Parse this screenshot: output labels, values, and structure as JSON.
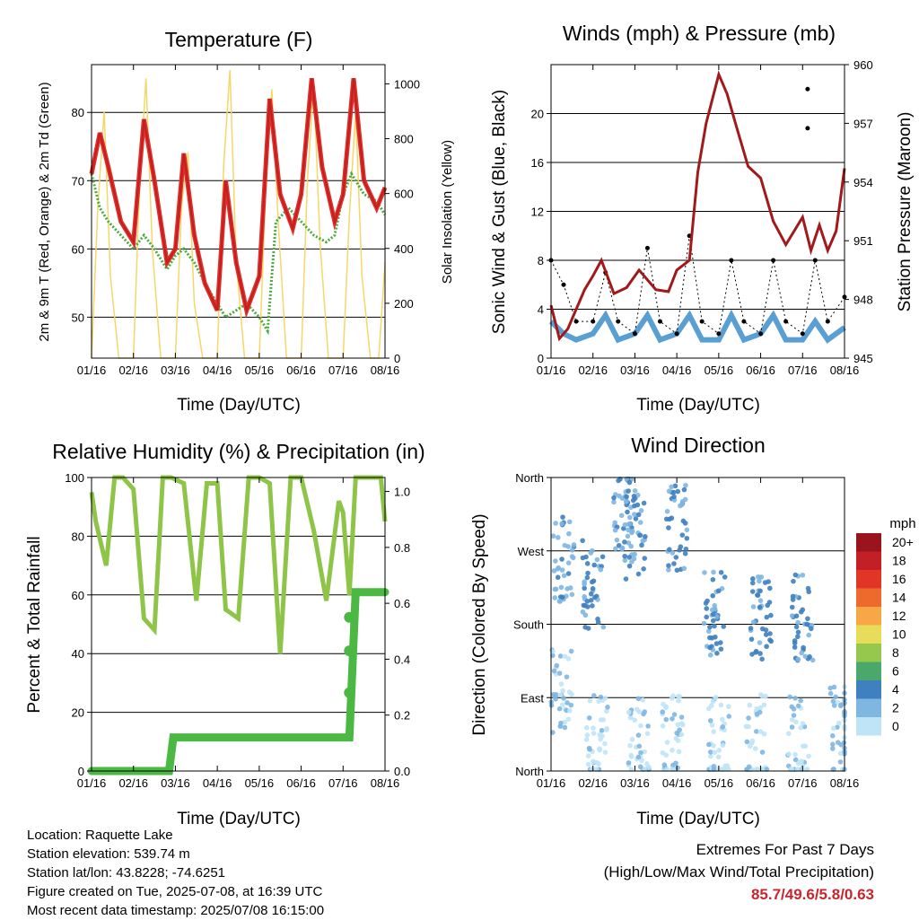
{
  "colors": {
    "temp_2m": "#e0302a",
    "temp_9m": "#c41f1f",
    "dewpoint": "#4aab3a",
    "solar": "#f5d769",
    "wind": "#5a9fd4",
    "gust": "#000000",
    "pressure": "#a0191b",
    "rh": "#8ec549",
    "precip": "#4cb844"
  },
  "chart_data": [
    {
      "id": "temperature",
      "type": "line",
      "title": "Temperature (F)",
      "xlabel": "Time (Day/UTC)",
      "ylabel": "2m & 9m T (Red, Orange) & 2m Td (Green)",
      "y2label": "Solar Insolation (Yellow)",
      "xticks": [
        "01/16",
        "02/16",
        "03/16",
        "04/16",
        "05/16",
        "06/16",
        "07/16",
        "08/16"
      ],
      "xlim": [
        0,
        7
      ],
      "ylim": [
        44,
        87
      ],
      "yticks": [
        50,
        60,
        70,
        80
      ],
      "y2lim": [
        0,
        1070
      ],
      "y2ticks": [
        0,
        200,
        400,
        600,
        800,
        1000
      ],
      "grid": true,
      "series": [
        {
          "key": "temp",
          "x": [
            0,
            0.2,
            0.4,
            0.7,
            1,
            1.25,
            1.5,
            1.8,
            2,
            2.2,
            2.45,
            2.7,
            3,
            3.2,
            3.45,
            3.7,
            4,
            4.25,
            4.5,
            4.8,
            5,
            5.25,
            5.5,
            5.8,
            6,
            6.25,
            6.5,
            6.8,
            7
          ],
          "y": [
            71,
            77,
            72,
            64,
            61,
            79,
            70,
            58,
            60,
            74,
            62,
            55,
            51,
            70,
            58,
            51,
            56,
            82,
            68,
            63,
            68,
            85,
            72,
            64,
            68,
            85,
            70,
            66,
            69
          ]
        },
        {
          "key": "dewpoint",
          "x": [
            0,
            0.2,
            0.4,
            0.7,
            1,
            1.25,
            1.5,
            1.8,
            2,
            2.2,
            2.45,
            2.7,
            3,
            3.2,
            3.45,
            3.7,
            4,
            4.2,
            4.4,
            4.7,
            5,
            5.3,
            5.6,
            5.8,
            6,
            6.2,
            6.5,
            6.8,
            7
          ],
          "y": [
            71,
            66,
            64,
            62,
            60,
            62,
            60,
            57,
            59,
            60,
            58,
            55,
            52,
            50,
            51,
            52,
            50,
            48,
            64,
            66,
            64,
            62,
            61,
            62,
            68,
            71,
            68,
            67,
            65
          ]
        },
        {
          "key": "solar",
          "x": [
            0,
            0.15,
            0.3,
            0.45,
            0.65,
            0.85,
            1,
            1.15,
            1.3,
            1.45,
            1.65,
            1.85,
            2,
            2.15,
            2.3,
            2.45,
            2.65,
            2.85,
            3,
            3.15,
            3.3,
            3.45,
            3.65,
            3.85,
            4,
            4.15,
            4.3,
            4.45,
            4.65,
            4.85,
            5,
            5.15,
            5.3,
            5.45,
            5.65,
            5.85,
            6,
            6.15,
            6.3,
            6.45,
            6.65,
            6.85,
            7
          ],
          "y": [
            0,
            550,
            900,
            300,
            0,
            0,
            0,
            650,
            1020,
            400,
            0,
            0,
            0,
            560,
            750,
            200,
            0,
            0,
            0,
            700,
            1050,
            350,
            0,
            0,
            0,
            600,
            980,
            500,
            0,
            0,
            0,
            650,
            1000,
            420,
            0,
            0,
            0,
            520,
            900,
            300,
            0,
            0,
            350
          ]
        }
      ]
    },
    {
      "id": "winds_pressure",
      "type": "scatter",
      "title": "Winds (mph) & Pressure (mb)",
      "xlabel": "Time (Day/UTC)",
      "ylabel": "Sonic Wind & Gust (Blue, Black)",
      "y2label": "Station Pressure (Maroon)",
      "xticks": [
        "01/16",
        "02/16",
        "03/16",
        "04/16",
        "05/16",
        "06/16",
        "07/16",
        "08/16"
      ],
      "xlim": [
        0,
        7
      ],
      "ylim": [
        0,
        24
      ],
      "yticks": [
        0,
        4,
        8,
        12,
        16,
        20
      ],
      "y2lim": [
        945,
        960
      ],
      "y2ticks": [
        945,
        948,
        951,
        954,
        957,
        960
      ],
      "grid": true,
      "series": [
        {
          "key": "wind",
          "x": [
            0,
            0.3,
            0.6,
            1,
            1.3,
            1.6,
            2,
            2.3,
            2.6,
            3,
            3.3,
            3.6,
            4,
            4.3,
            4.6,
            5,
            5.3,
            5.6,
            6,
            6.3,
            6.6,
            7
          ],
          "y": [
            3,
            2,
            1.5,
            2,
            3.5,
            1.5,
            2,
            3.5,
            1.5,
            2,
            3.5,
            1.5,
            1.5,
            3.5,
            1.5,
            2,
            3.5,
            1.5,
            1.5,
            3,
            1.5,
            2.5
          ]
        },
        {
          "key": "gust",
          "x": [
            0,
            0.3,
            0.6,
            1,
            1.3,
            1.6,
            2,
            2.3,
            2.6,
            3,
            3.3,
            3.6,
            4,
            4.3,
            4.6,
            5,
            5.3,
            5.6,
            6,
            6.3,
            6.6,
            7
          ],
          "y": [
            8,
            6,
            3,
            3,
            7,
            3,
            2,
            9,
            3,
            2,
            10,
            3,
            2,
            8,
            3,
            2,
            8,
            3,
            2,
            8,
            3,
            5
          ]
        },
        {
          "key": "pressure",
          "x": [
            0,
            0.2,
            0.4,
            0.8,
            1,
            1.2,
            1.5,
            1.8,
            2.1,
            2.5,
            2.8,
            3,
            3.3,
            3.5,
            3.7,
            4,
            4.2,
            4.4,
            4.7,
            5,
            5.3,
            5.6,
            6,
            6.2,
            6.4,
            6.6,
            6.8,
            7
          ],
          "y": [
            947.7,
            946,
            946.5,
            948.5,
            949.2,
            950,
            948.3,
            948.6,
            949.5,
            948.5,
            948.4,
            949.5,
            950,
            954.5,
            957,
            959.5,
            958.5,
            957,
            954.8,
            954.2,
            952,
            950.8,
            952.2,
            950.5,
            951.8,
            950.5,
            951.5,
            954.7
          ]
        }
      ],
      "annotations": {
        "gust_outliers": [
          {
            "x": 6.12,
            "y": 22
          },
          {
            "x": 6.12,
            "y": 18.8
          }
        ]
      }
    },
    {
      "id": "rh_precip",
      "type": "line",
      "title": "Relative Humidity (%) & Precipitation (in)",
      "xlabel": "Time (Day/UTC)",
      "ylabel": "Percent & Total Rainfall",
      "xticks": [
        "01/16",
        "02/16",
        "03/16",
        "04/16",
        "05/16",
        "06/16",
        "07/16",
        "08/16"
      ],
      "xlim": [
        0,
        7
      ],
      "ylim": [
        0,
        100
      ],
      "yticks": [
        0,
        20,
        40,
        60,
        80,
        100
      ],
      "y2lim": [
        0,
        1.05
      ],
      "y2ticks": [
        "0.0",
        "0.2",
        "0.4",
        "0.6",
        "0.8",
        "1.0"
      ],
      "grid": true,
      "series": [
        {
          "key": "rh",
          "x": [
            0,
            0.1,
            0.35,
            0.55,
            0.75,
            1,
            1.25,
            1.5,
            1.7,
            1.9,
            2.2,
            2.5,
            2.75,
            3,
            3.2,
            3.5,
            3.75,
            4,
            4.25,
            4.5,
            4.75,
            5,
            5.3,
            5.6,
            5.9,
            6,
            6.15,
            6.3,
            6.6,
            6.9,
            7
          ],
          "y": [
            95,
            85,
            70,
            100,
            100,
            96,
            52,
            48,
            100,
            100,
            98,
            58,
            98,
            98,
            55,
            52,
            100,
            100,
            98,
            40,
            100,
            100,
            82,
            58,
            92,
            88,
            60,
            100,
            100,
            100,
            85
          ]
        },
        {
          "key": "precip",
          "x": [
            0,
            1.85,
            1.95,
            2.5,
            3,
            4,
            5,
            6,
            6.15,
            6.3,
            6.5,
            7
          ],
          "y": [
            0,
            0,
            0.12,
            0.12,
            0.12,
            0.12,
            0.12,
            0.12,
            0.12,
            0.64,
            0.64,
            0.64
          ]
        }
      ],
      "annotations": {
        "precip_jumps": [
          {
            "x": 6.15,
            "y": 0.28
          },
          {
            "x": 6.15,
            "y": 0.43
          },
          {
            "x": 6.15,
            "y": 0.55
          }
        ]
      }
    },
    {
      "id": "wind_direction",
      "type": "scatter",
      "title": "Wind Direction",
      "xlabel": "Time (Day/UTC)",
      "ylabel": "Direction (Colored By Speed)",
      "xticks": [
        "01/16",
        "02/16",
        "03/16",
        "04/16",
        "05/16",
        "06/16",
        "07/16",
        "08/16"
      ],
      "xlim": [
        0,
        7
      ],
      "ylim": [
        0,
        360
      ],
      "ytick_labels": [
        "North",
        "East",
        "South",
        "West",
        "North"
      ],
      "grid": true,
      "legend": {
        "title": "mph",
        "placement": "right",
        "labels": [
          "20+",
          "18",
          "16",
          "14",
          "12",
          "10",
          "8",
          "6",
          "4",
          "2",
          "0"
        ],
        "colors": [
          "#99151b",
          "#c22026",
          "#e13528",
          "#ec6a2c",
          "#f7a745",
          "#e8dd5a",
          "#95c84d",
          "#4aa86a",
          "#3f80bf",
          "#80b6e2",
          "#bfe4f6"
        ]
      },
      "clusters": [
        {
          "x": 0.25,
          "dir": 100,
          "speed": 2
        },
        {
          "x": 0.3,
          "dir": 260,
          "speed": 3
        },
        {
          "x": 1.1,
          "dir": 40,
          "speed": 1
        },
        {
          "x": 1.0,
          "dir": 230,
          "speed": 4
        },
        {
          "x": 1.7,
          "dir": 320,
          "speed": 3
        },
        {
          "x": 2.1,
          "dir": 40,
          "speed": 1
        },
        {
          "x": 2.0,
          "dir": 290,
          "speed": 4
        },
        {
          "x": 3.0,
          "dir": 300,
          "speed": 4
        },
        {
          "x": 2.9,
          "dir": 40,
          "speed": 1
        },
        {
          "x": 4.0,
          "dir": 40,
          "speed": 1
        },
        {
          "x": 3.9,
          "dir": 190,
          "speed": 4
        },
        {
          "x": 4.9,
          "dir": 40,
          "speed": 1
        },
        {
          "x": 5.0,
          "dir": 190,
          "speed": 4
        },
        {
          "x": 5.9,
          "dir": 40,
          "speed": 1
        },
        {
          "x": 6.0,
          "dir": 190,
          "speed": 4
        },
        {
          "x": 6.9,
          "dir": 50,
          "speed": 2
        }
      ]
    }
  ],
  "info": {
    "location": "Location: Raquette Lake",
    "elevation": "Station elevation: 539.74 m",
    "latlon": "Station lat/lon: 43.8228; -74.6251",
    "created": "Figure created on Tue, 2025-07-08, at 16:39 UTC",
    "recent": "Most recent data timestamp: 2025/07/08 16:15:00"
  },
  "extremes": {
    "line1": "Extremes For Past 7 Days",
    "line2": "(High/Low/Max Wind/Total Precipitation)",
    "values": "85.7/49.6/5.8/0.63"
  }
}
